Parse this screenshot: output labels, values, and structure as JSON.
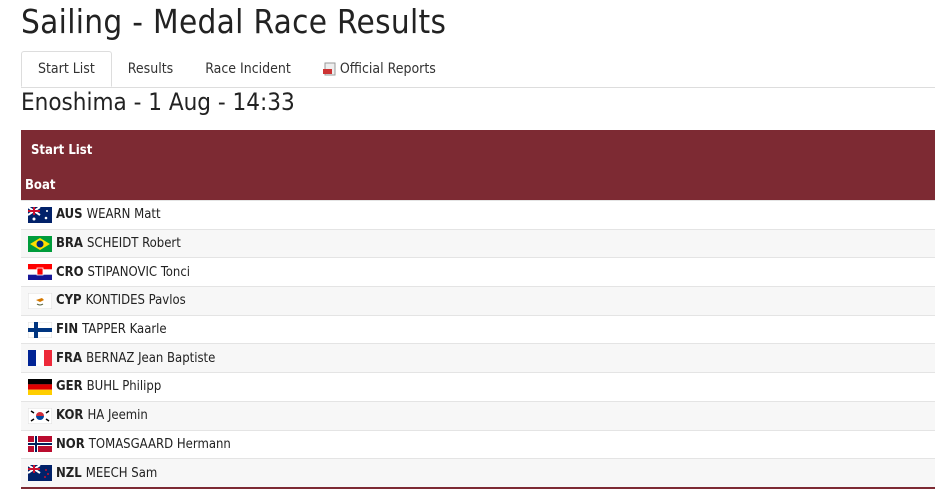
{
  "title": "Sailing - Medal Race Results",
  "tabs": [
    "Start List",
    "Results",
    "Race Incident",
    "Official Reports"
  ],
  "venue": "Enoshima - 1 Aug - 14:33",
  "table": {
    "caption": "Start List",
    "column": "Boat",
    "rows": [
      {
        "noc": "AUS",
        "name": "WEARN Matt"
      },
      {
        "noc": "BRA",
        "name": "SCHEIDT Robert"
      },
      {
        "noc": "CRO",
        "name": "STIPANOVIC Tonci"
      },
      {
        "noc": "CYP",
        "name": "KONTIDES Pavlos"
      },
      {
        "noc": "FIN",
        "name": "TAPPER Kaarle"
      },
      {
        "noc": "FRA",
        "name": "BERNAZ Jean Baptiste"
      },
      {
        "noc": "GER",
        "name": "BUHL Philipp"
      },
      {
        "noc": "KOR",
        "name": "HA Jeemin"
      },
      {
        "noc": "NOR",
        "name": "TOMASGAARD Hermann"
      },
      {
        "noc": "NZL",
        "name": "MEECH Sam"
      }
    ]
  }
}
